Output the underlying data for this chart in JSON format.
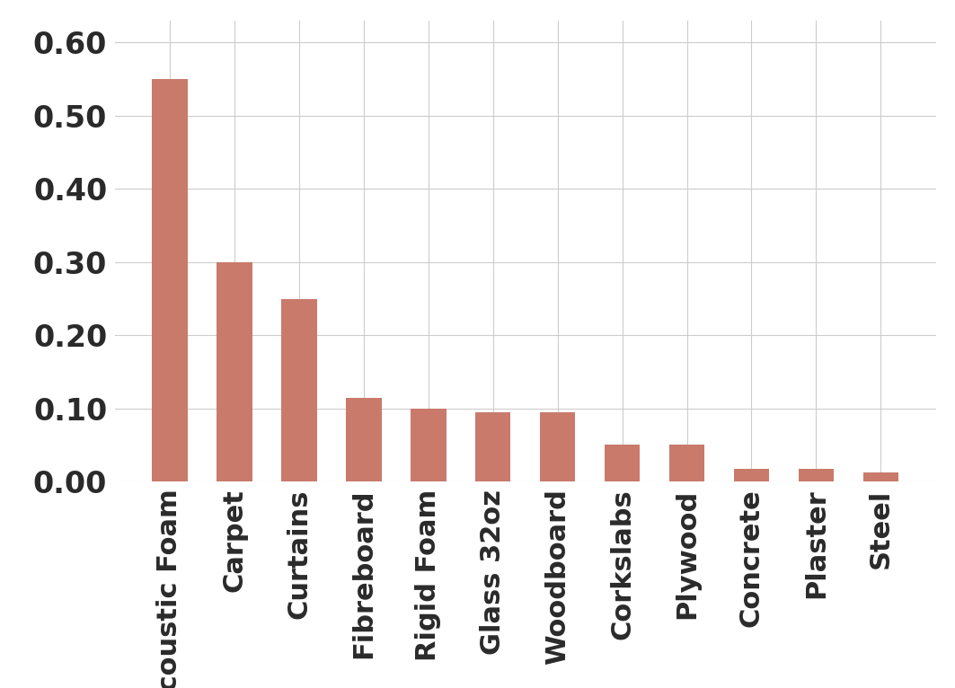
{
  "categories": [
    "Acoustic Foam",
    "Carpet",
    "Curtains",
    "Fibreboard",
    "Rigid Foam",
    "Glass 32oz",
    "Woodboard",
    "Corkslabs",
    "Plywood",
    "Concrete",
    "Plaster",
    "Steel"
  ],
  "values": [
    0.55,
    0.3,
    0.25,
    0.115,
    0.1,
    0.095,
    0.095,
    0.05,
    0.05,
    0.018,
    0.018,
    0.012
  ],
  "bar_color": "#C97A6B",
  "background_color": "#FFFFFF",
  "grid_color": "#CCCCCC",
  "ylim": [
    0,
    0.63
  ],
  "yticks": [
    0.0,
    0.1,
    0.2,
    0.3,
    0.4,
    0.5,
    0.6
  ],
  "ytick_labels": [
    "0.00",
    "0.10",
    "0.20",
    "0.30",
    "0.40",
    "0.50",
    "0.60"
  ],
  "tick_fontsize": 24,
  "label_fontsize": 22,
  "label_fontweight": "bold",
  "bar_width": 0.55
}
